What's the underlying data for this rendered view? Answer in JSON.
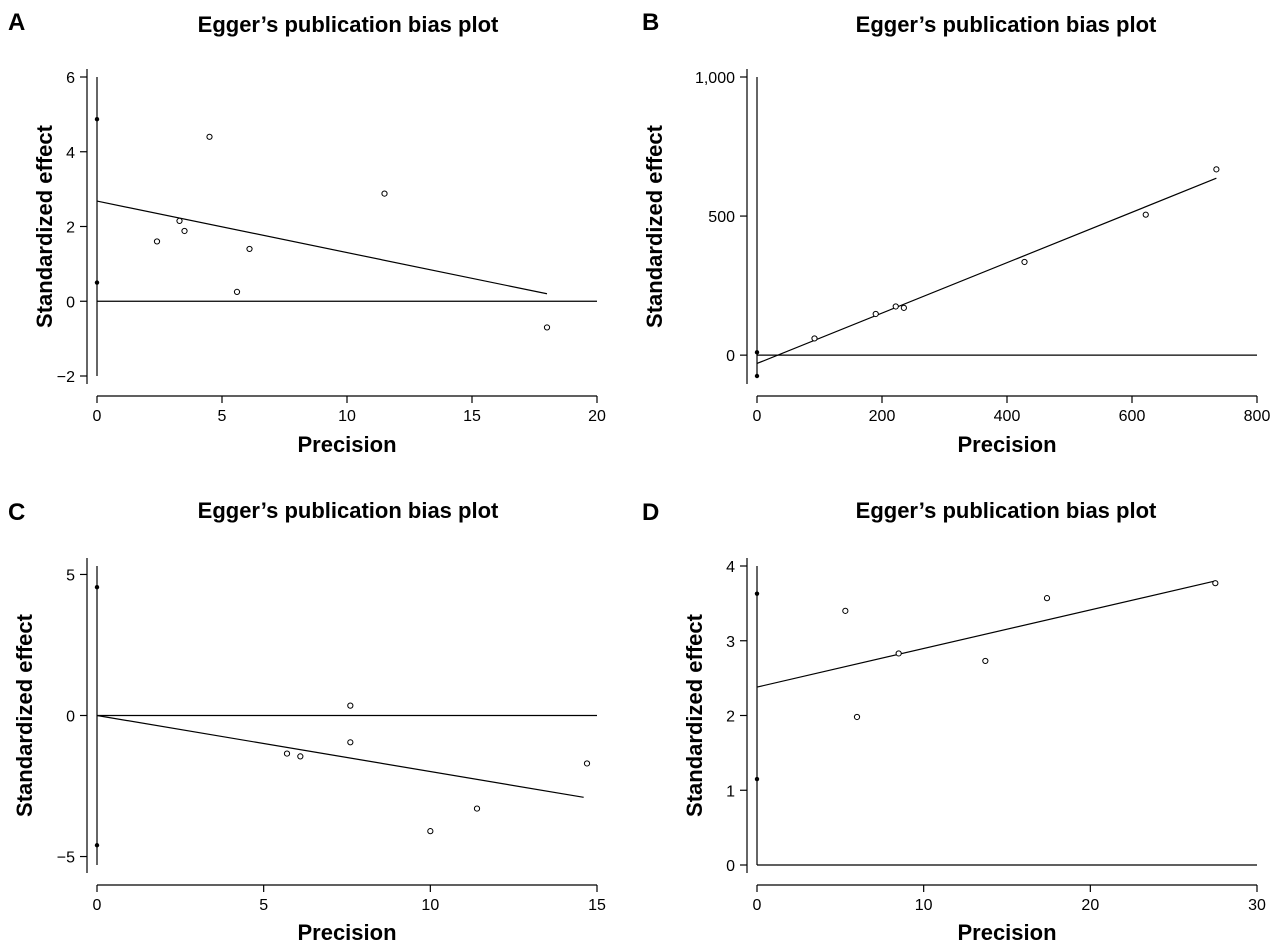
{
  "chart_data": [
    {
      "panel": "A",
      "type": "scatter",
      "title": "Egger’s publication bias plot",
      "xlabel": "Precision",
      "ylabel": "Standardized effect",
      "xlim": [
        0,
        20
      ],
      "ylim": [
        -2,
        6
      ],
      "xticks": [
        0,
        5,
        10,
        15,
        20
      ],
      "xtick_labels": [
        "0",
        "5",
        "10",
        "15",
        "20"
      ],
      "yticks": [
        -2,
        0,
        2,
        4,
        6
      ],
      "ytick_labels": [
        "−2",
        "0",
        "2",
        "4",
        "6"
      ],
      "points": [
        {
          "x": 2.4,
          "y": 1.6
        },
        {
          "x": 3.3,
          "y": 2.15
        },
        {
          "x": 3.5,
          "y": 1.88
        },
        {
          "x": 4.5,
          "y": 4.4
        },
        {
          "x": 5.6,
          "y": 0.25
        },
        {
          "x": 6.1,
          "y": 1.4
        },
        {
          "x": 11.5,
          "y": 2.88
        },
        {
          "x": 18.0,
          "y": -0.7
        }
      ],
      "regression": {
        "x": [
          0,
          18.0
        ],
        "y": [
          2.68,
          0.2
        ]
      },
      "ci_bar": {
        "x": 0,
        "y_low": 0.5,
        "y_high": 4.87
      }
    },
    {
      "panel": "B",
      "type": "scatter",
      "title": "Egger’s publication bias plot",
      "xlabel": "Precision",
      "ylabel": "Standardized effect",
      "xlim": [
        0,
        800
      ],
      "ylim": [
        -75,
        1000
      ],
      "xticks": [
        0,
        200,
        400,
        600,
        800
      ],
      "xtick_labels": [
        "0",
        "200",
        "400",
        "600",
        "800"
      ],
      "yticks": [
        0,
        500,
        1000
      ],
      "ytick_labels": [
        "0",
        "500",
        "1,000"
      ],
      "points": [
        {
          "x": 92,
          "y": 60
        },
        {
          "x": 190,
          "y": 148
        },
        {
          "x": 222,
          "y": 175
        },
        {
          "x": 235,
          "y": 170
        },
        {
          "x": 428,
          "y": 335
        },
        {
          "x": 622,
          "y": 505
        },
        {
          "x": 735,
          "y": 668
        }
      ],
      "regression": {
        "x": [
          0,
          735
        ],
        "y": [
          -30,
          636
        ]
      },
      "ci_bar": {
        "x": 0,
        "y_low": -75,
        "y_high": 10
      }
    },
    {
      "panel": "C",
      "type": "scatter",
      "title": "Egger’s publication bias plot",
      "xlabel": "Precision",
      "ylabel": "Standardized effect",
      "xlim": [
        0,
        15
      ],
      "ylim": [
        -5.3,
        5.3
      ],
      "xticks": [
        0,
        5,
        10,
        15
      ],
      "xtick_labels": [
        "0",
        "5",
        "10",
        "15"
      ],
      "yticks": [
        -5,
        0,
        5
      ],
      "ytick_labels": [
        "−5",
        "0",
        "5"
      ],
      "points": [
        {
          "x": 5.7,
          "y": -1.35
        },
        {
          "x": 6.1,
          "y": -1.45
        },
        {
          "x": 7.6,
          "y": 0.35
        },
        {
          "x": 7.6,
          "y": -0.95
        },
        {
          "x": 10.0,
          "y": -4.1
        },
        {
          "x": 11.4,
          "y": -3.3
        },
        {
          "x": 14.7,
          "y": -1.7
        }
      ],
      "regression": {
        "x": [
          0,
          14.6
        ],
        "y": [
          0,
          -2.9
        ]
      },
      "ci_bar": {
        "x": 0,
        "y_low": -4.6,
        "y_high": 4.55
      }
    },
    {
      "panel": "D",
      "type": "scatter",
      "title": "Egger’s publication bias plot",
      "xlabel": "Precision",
      "ylabel": "Standardized effect",
      "xlim": [
        0,
        30
      ],
      "ylim": [
        0,
        4
      ],
      "xticks": [
        0,
        10,
        20,
        30
      ],
      "xtick_labels": [
        "0",
        "10",
        "20",
        "30"
      ],
      "yticks": [
        0,
        1,
        2,
        3,
        4
      ],
      "ytick_labels": [
        "0",
        "1",
        "2",
        "3",
        "4"
      ],
      "points": [
        {
          "x": 5.3,
          "y": 3.4
        },
        {
          "x": 6.0,
          "y": 1.98
        },
        {
          "x": 8.5,
          "y": 2.83
        },
        {
          "x": 13.7,
          "y": 2.73
        },
        {
          "x": 17.4,
          "y": 3.57
        },
        {
          "x": 27.5,
          "y": 3.77
        }
      ],
      "regression": {
        "x": [
          0,
          27.5
        ],
        "y": [
          2.38,
          3.8
        ]
      },
      "ci_bar": {
        "x": 0,
        "y_low": 1.15,
        "y_high": 3.63
      }
    }
  ]
}
